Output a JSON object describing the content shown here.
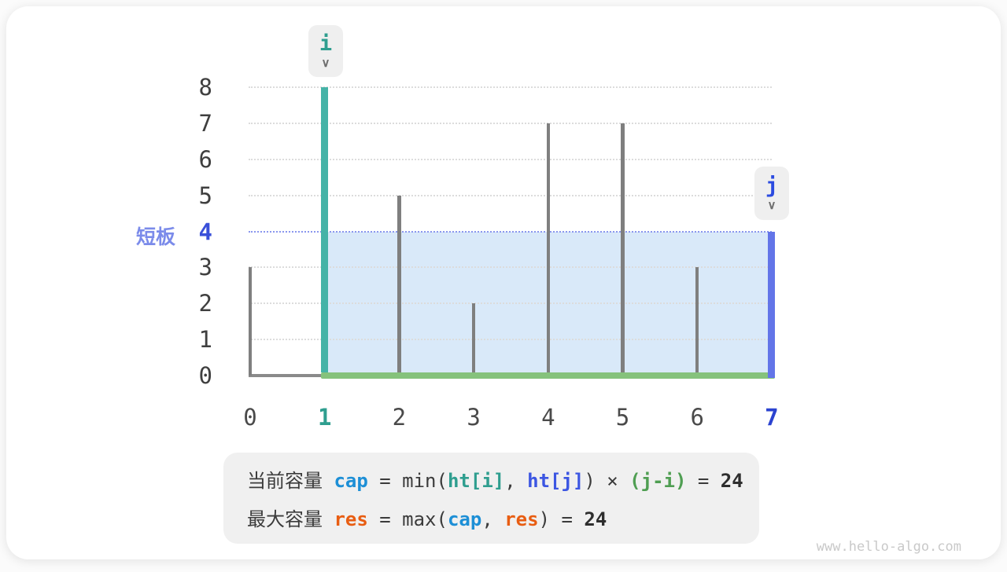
{
  "page": {
    "watermark": "www.hello-algo.com"
  },
  "labels": {
    "short_board": "短板",
    "pointer_i": "i",
    "pointer_j": "j"
  },
  "icons": {
    "chevron_down": "∨"
  },
  "colors": {
    "teal_bar": "#45b3a7",
    "teal_text": "#2f9e8f",
    "blue_bar": "#6375e8",
    "blue_text": "#2b43d0",
    "periwinkle": "#7b8bea",
    "water_fill": "#d9e9f9",
    "green_baseline": "#85c27c",
    "gray_bar": "#7f7f7f",
    "grid": "#dcdcdc",
    "level_dotted": "#8a97ee",
    "cap_blue": "#1d8fd6",
    "res_orange": "#e85d12",
    "expr_green": "#4f9e52",
    "badge_bg": "#efefef",
    "box_bg": "#f0f0f0"
  },
  "chart_data": {
    "type": "bar",
    "title": "",
    "xlabel": "",
    "ylabel": "",
    "x": [
      0,
      1,
      2,
      3,
      4,
      5,
      6,
      7
    ],
    "heights": [
      3,
      8,
      5,
      2,
      7,
      7,
      3,
      4
    ],
    "x_tick_labels": [
      "0",
      "1",
      "2",
      "3",
      "4",
      "5",
      "6",
      "7"
    ],
    "y_tick_labels": [
      "0",
      "1",
      "2",
      "3",
      "4",
      "5",
      "6",
      "7",
      "8"
    ],
    "ylim": [
      0,
      8
    ],
    "grid": "horizontal-dotted",
    "i_index": 1,
    "j_index": 7,
    "water_level": 4,
    "water_span": [
      1,
      7
    ],
    "short_board_value": 4,
    "current_capacity": 24,
    "max_capacity": 24
  },
  "formula": {
    "line1": [
      {
        "t": "当前容量 ",
        "c": "dark"
      },
      {
        "t": "cap",
        "c": "sky"
      },
      {
        "t": " = min(",
        "c": "dark"
      },
      {
        "t": "ht[i]",
        "c": "teal"
      },
      {
        "t": ", ",
        "c": "dark"
      },
      {
        "t": "ht[j]",
        "c": "blue"
      },
      {
        "t": ") × ",
        "c": "dark"
      },
      {
        "t": "(j-i)",
        "c": "green"
      },
      {
        "t": " = ",
        "c": "dark"
      },
      {
        "t": "24",
        "c": "darkb"
      }
    ],
    "line2": [
      {
        "t": "最大容量 ",
        "c": "dark"
      },
      {
        "t": "res",
        "c": "orange"
      },
      {
        "t": " = max(",
        "c": "dark"
      },
      {
        "t": "cap",
        "c": "sky"
      },
      {
        "t": ", ",
        "c": "dark"
      },
      {
        "t": "res",
        "c": "orange"
      },
      {
        "t": ") = ",
        "c": "dark"
      },
      {
        "t": "24",
        "c": "darkb"
      }
    ]
  }
}
